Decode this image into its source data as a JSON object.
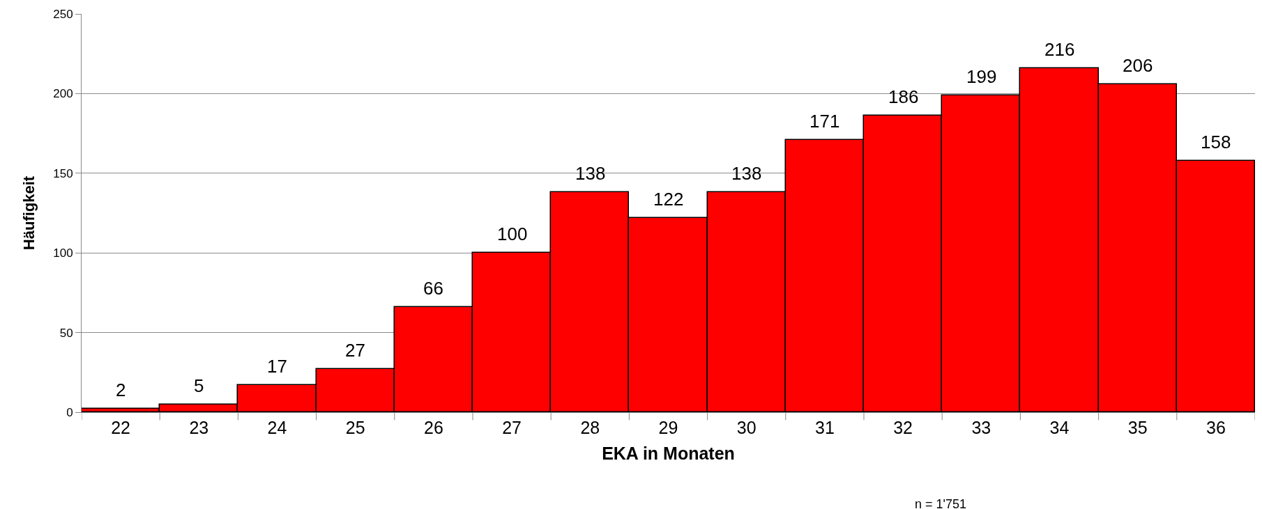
{
  "chart_data": {
    "type": "bar",
    "xlabel": "EKA in Monaten",
    "ylabel": "Häufigkeit",
    "categories": [
      "22",
      "23",
      "24",
      "25",
      "26",
      "27",
      "28",
      "29",
      "30",
      "31",
      "32",
      "33",
      "34",
      "35",
      "36"
    ],
    "values": [
      2,
      5,
      17,
      27,
      66,
      100,
      138,
      122,
      138,
      171,
      186,
      199,
      216,
      206,
      158
    ],
    "color": "#ff0000",
    "ylim": [
      0,
      250
    ],
    "yticks": [
      0,
      50,
      100,
      150,
      200,
      250
    ],
    "grid": "y",
    "data_labels": true,
    "legend": false,
    "annotations": [
      "n = 1'751"
    ]
  }
}
